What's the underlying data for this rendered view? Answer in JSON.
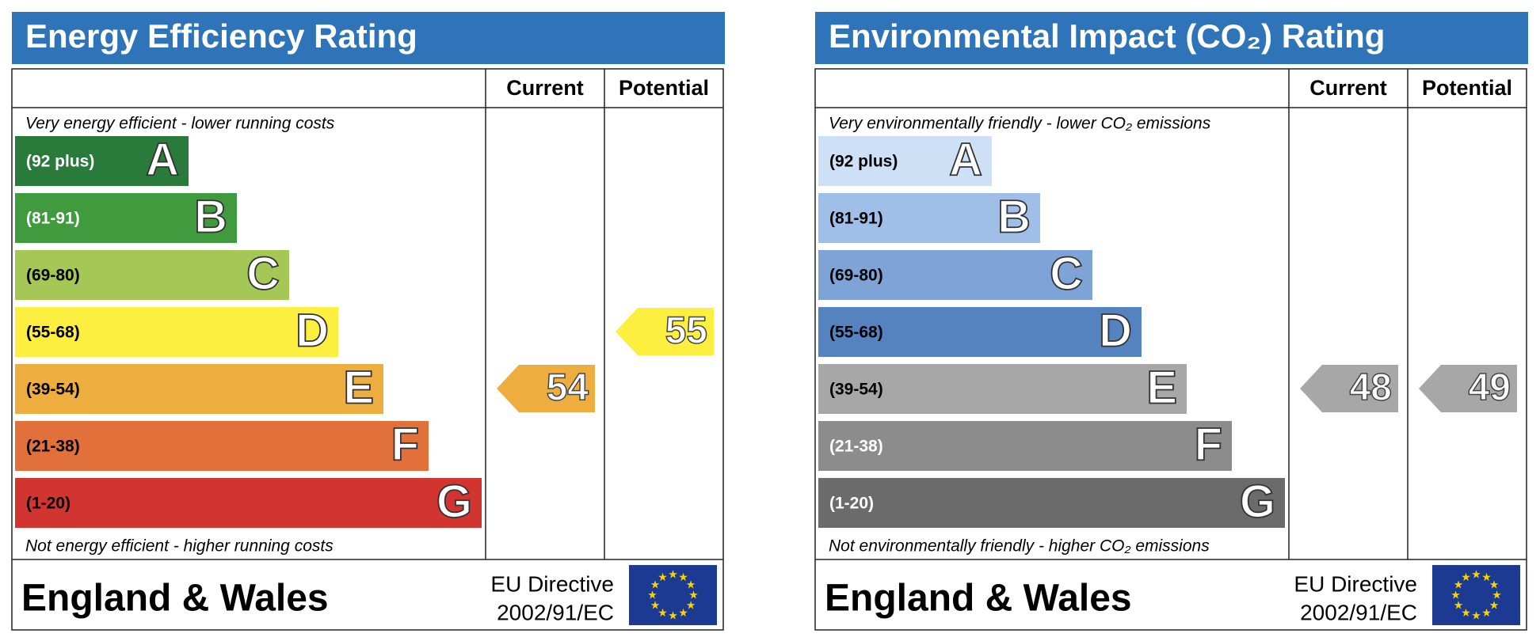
{
  "chart_data": [
    {
      "type": "epc",
      "title": "Energy Efficiency Rating",
      "columns": [
        "Current",
        "Potential"
      ],
      "top_note": "Very energy efficient - lower running costs",
      "bottom_note": "Not energy efficient - higher running costs",
      "bands": [
        {
          "range": "(92 plus)",
          "letter": "A",
          "color": "#2a7a3b",
          "text_color": "#ffffff"
        },
        {
          "range": "(81-91)",
          "letter": "B",
          "color": "#3f9b3e",
          "text_color": "#ffffff"
        },
        {
          "range": "(69-80)",
          "letter": "C",
          "color": "#a4c756",
          "text_color": "#000000"
        },
        {
          "range": "(55-68)",
          "letter": "D",
          "color": "#fdef40",
          "text_color": "#000000"
        },
        {
          "range": "(39-54)",
          "letter": "E",
          "color": "#eeae3f",
          "text_color": "#000000"
        },
        {
          "range": "(21-38)",
          "letter": "F",
          "color": "#e2703a",
          "text_color": "#000000"
        },
        {
          "range": "(1-20)",
          "letter": "G",
          "color": "#d2352f",
          "text_color": "#000000"
        }
      ],
      "current": {
        "value": 54,
        "color": "#eeae3f"
      },
      "potential": {
        "value": 55,
        "color": "#fdef40"
      },
      "footer": {
        "region": "England & Wales",
        "directive": [
          "EU Directive",
          "2002/91/EC"
        ]
      }
    },
    {
      "type": "epc",
      "title": "Environmental Impact (CO₂) Rating",
      "columns": [
        "Current",
        "Potential"
      ],
      "top_note": "Very environmentally friendly - lower CO₂ emissions",
      "bottom_note": "Not environmentally friendly - higher CO₂ emissions",
      "bands": [
        {
          "range": "(92 plus)",
          "letter": "A",
          "color": "#cde0f5",
          "text_color": "#000000"
        },
        {
          "range": "(81-91)",
          "letter": "B",
          "color": "#9fbfe9",
          "text_color": "#000000"
        },
        {
          "range": "(69-80)",
          "letter": "C",
          "color": "#7ea3d6",
          "text_color": "#000000"
        },
        {
          "range": "(55-68)",
          "letter": "D",
          "color": "#5583c0",
          "text_color": "#000000"
        },
        {
          "range": "(39-54)",
          "letter": "E",
          "color": "#a7a7a7",
          "text_color": "#000000"
        },
        {
          "range": "(21-38)",
          "letter": "F",
          "color": "#8c8c8c",
          "text_color": "#ffffff"
        },
        {
          "range": "(1-20)",
          "letter": "G",
          "color": "#6b6b6b",
          "text_color": "#ffffff"
        }
      ],
      "current": {
        "value": 48,
        "color": "#a7a7a7"
      },
      "potential": {
        "value": 49,
        "color": "#a7a7a7"
      },
      "footer": {
        "region": "England & Wales",
        "directive": [
          "EU Directive",
          "2002/91/EC"
        ]
      }
    }
  ]
}
